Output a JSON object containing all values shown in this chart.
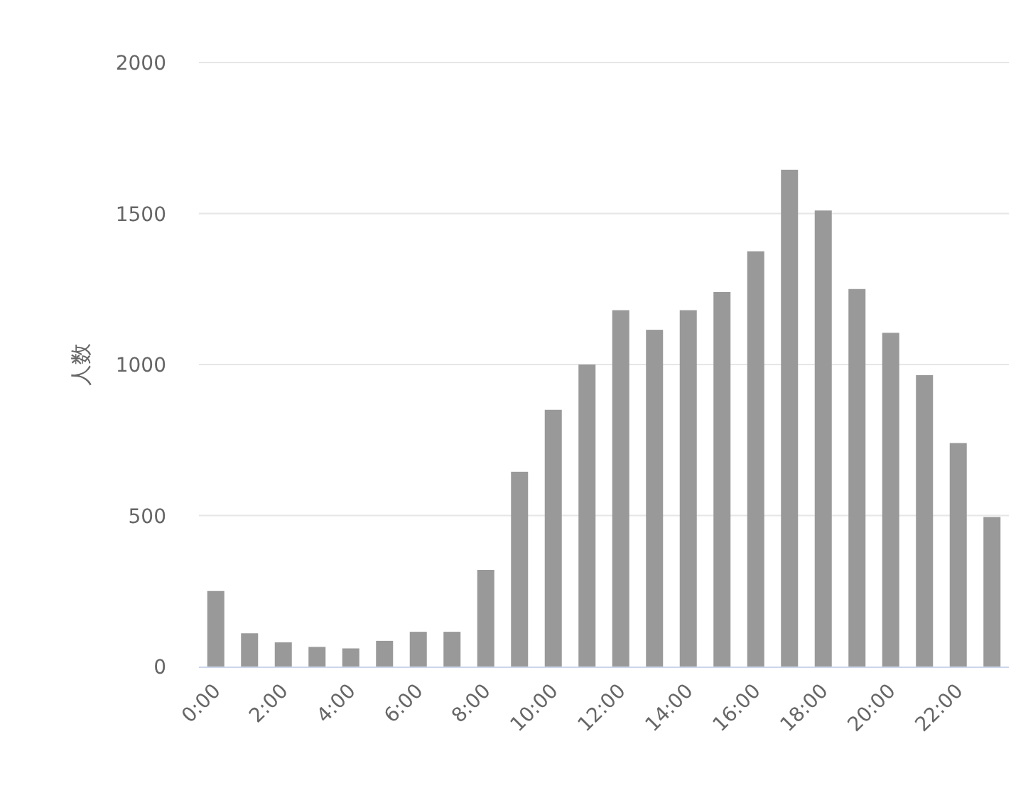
{
  "chart_data": {
    "type": "bar",
    "ylabel": "人数",
    "color": "#999999",
    "grid": "y",
    "categories": [
      "0:00",
      null,
      "2:00",
      null,
      "4:00",
      null,
      "6:00",
      null,
      "8:00",
      null,
      "10:00",
      null,
      "12:00",
      null,
      "14:00",
      null,
      "16:00",
      null,
      "18:00",
      null,
      "20:00",
      null,
      "22:00",
      null
    ],
    "values": [
      250,
      110,
      80,
      65,
      60,
      85,
      115,
      115,
      320,
      645,
      850,
      1000,
      1180,
      1115,
      1180,
      1240,
      1375,
      1645,
      1510,
      1250,
      1105,
      965,
      740,
      495
    ],
    "ylim": [
      0,
      2000
    ],
    "yticks": [
      0,
      500,
      1000,
      1500,
      2000
    ]
  }
}
